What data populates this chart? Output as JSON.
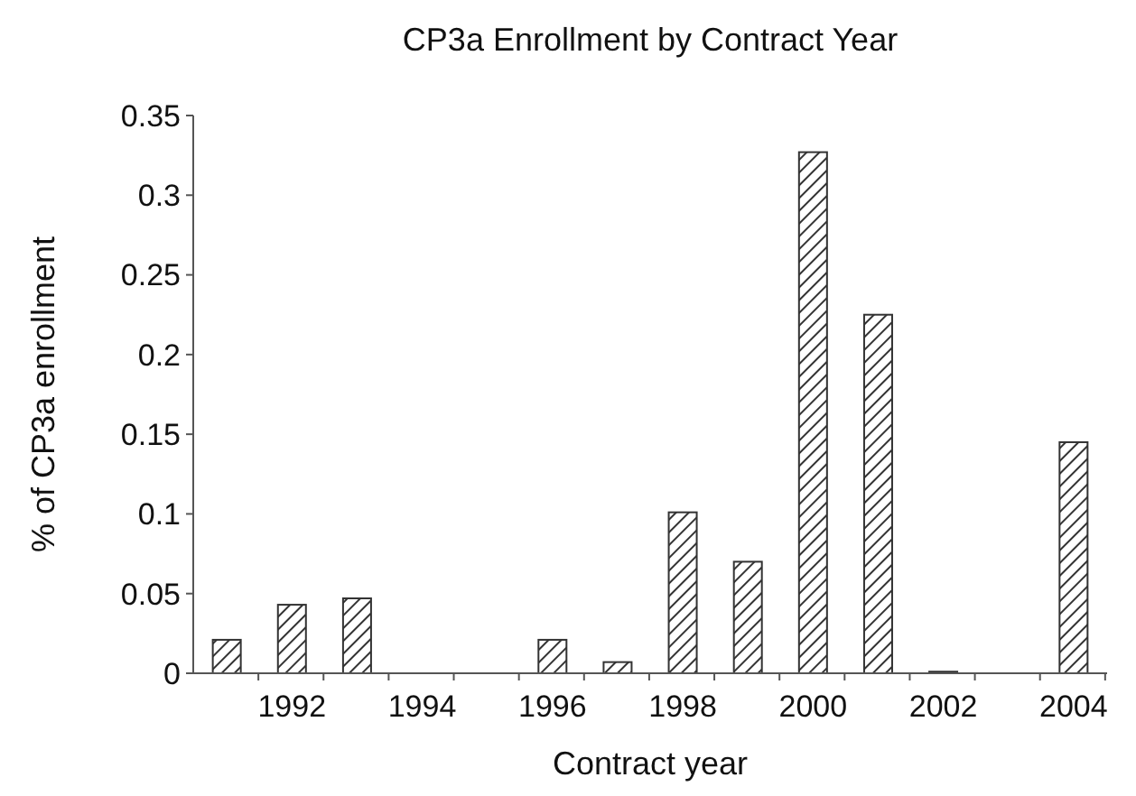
{
  "chart_data": {
    "type": "bar",
    "title": "CP3a Enrollment by Contract Year",
    "xlabel": "Contract year",
    "ylabel": "% of CP3a enrollment",
    "categories": [
      null,
      "1992",
      null,
      "1994",
      null,
      "1996",
      null,
      "1998",
      null,
      "2000",
      null,
      "2002",
      null,
      "2004"
    ],
    "values": [
      0.021,
      0.043,
      0.047,
      0,
      0,
      0.021,
      0.007,
      0.101,
      0.07,
      0.327,
      0.225,
      0.001,
      0,
      0.145
    ],
    "color": "#333333",
    "ylim": [
      0,
      0.35
    ],
    "yticks": [
      0,
      0.05,
      0.1,
      0.15,
      0.2,
      0.25,
      0.3,
      0.35
    ],
    "grid": false
  }
}
